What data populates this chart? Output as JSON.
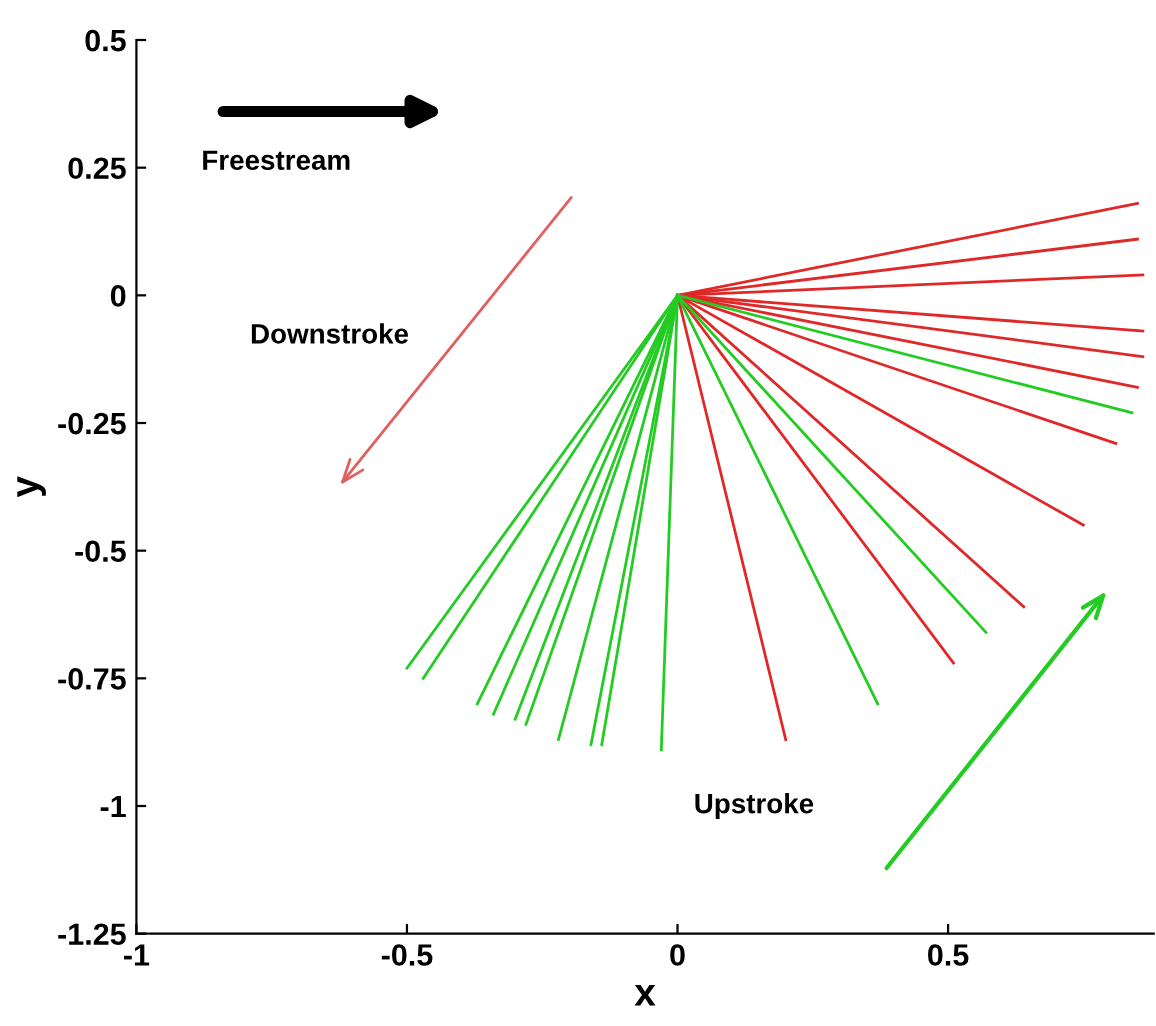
{
  "chart_data": {
    "type": "line",
    "xlabel": "x",
    "ylabel": "y",
    "xlim": [
      -1,
      0.88
    ],
    "ylim": [
      -1.25,
      0.5
    ],
    "xticks": [
      -1,
      -0.5,
      0,
      0.5
    ],
    "yticks": [
      -1.25,
      -1,
      -0.75,
      -0.5,
      -0.25,
      0,
      0.25,
      0.5
    ],
    "grid": false,
    "legend": false,
    "marker": "none",
    "line_style": "solid",
    "annotations": [
      "Freestream",
      "Downstroke",
      "Upstroke"
    ],
    "series": [
      {
        "color": "#e02828",
        "x": [
          0,
          0.2
        ],
        "values": [
          0,
          -0.87
        ]
      },
      {
        "color": "#e02828",
        "x": [
          0,
          0.51
        ],
        "values": [
          0,
          -0.72
        ]
      },
      {
        "color": "#e02828",
        "x": [
          0,
          0.64
        ],
        "values": [
          0,
          -0.61
        ]
      },
      {
        "color": "#e02828",
        "x": [
          0,
          0.75
        ],
        "values": [
          0,
          -0.45
        ]
      },
      {
        "color": "#e02828",
        "x": [
          0,
          0.81
        ],
        "values": [
          0,
          -0.29
        ]
      },
      {
        "color": "#e02828",
        "x": [
          0,
          0.85
        ],
        "values": [
          0,
          -0.18
        ]
      },
      {
        "color": "#e02828",
        "x": [
          0,
          0.86
        ],
        "values": [
          0,
          -0.12
        ]
      },
      {
        "color": "#e02828",
        "x": [
          0,
          0.86
        ],
        "values": [
          0,
          -0.07
        ]
      },
      {
        "color": "#e02828",
        "x": [
          0,
          0.86
        ],
        "values": [
          0,
          0.04
        ]
      },
      {
        "color": "#e02828",
        "x": [
          0,
          0.85
        ],
        "values": [
          0,
          0.11
        ]
      },
      {
        "color": "#e02828",
        "x": [
          0,
          0.85
        ],
        "values": [
          0,
          0.18
        ]
      },
      {
        "color": "#22cc22",
        "x": [
          0,
          -0.5
        ],
        "values": [
          0,
          -0.73
        ]
      },
      {
        "color": "#22cc22",
        "x": [
          0,
          -0.47
        ],
        "values": [
          0,
          -0.75
        ]
      },
      {
        "color": "#22cc22",
        "x": [
          0,
          -0.37
        ],
        "values": [
          0,
          -0.8
        ]
      },
      {
        "color": "#22cc22",
        "x": [
          0,
          -0.34
        ],
        "values": [
          0,
          -0.82
        ]
      },
      {
        "color": "#22cc22",
        "x": [
          0,
          -0.3
        ],
        "values": [
          0,
          -0.83
        ]
      },
      {
        "color": "#22cc22",
        "x": [
          0,
          -0.28
        ],
        "values": [
          0,
          -0.84
        ]
      },
      {
        "color": "#22cc22",
        "x": [
          0,
          -0.22
        ],
        "values": [
          0,
          -0.87
        ]
      },
      {
        "color": "#22cc22",
        "x": [
          0,
          -0.16
        ],
        "values": [
          0,
          -0.88
        ]
      },
      {
        "color": "#22cc22",
        "x": [
          0,
          -0.14
        ],
        "values": [
          0,
          -0.88
        ]
      },
      {
        "color": "#22cc22",
        "x": [
          0,
          -0.03
        ],
        "values": [
          0,
          -0.89
        ]
      },
      {
        "color": "#22cc22",
        "x": [
          0,
          0.37
        ],
        "values": [
          0,
          -0.8
        ]
      },
      {
        "color": "#22cc22",
        "x": [
          0,
          0.57
        ],
        "values": [
          0,
          -0.66
        ]
      },
      {
        "color": "#22cc22",
        "x": [
          0,
          0.84
        ],
        "values": [
          0,
          -0.23
        ]
      }
    ]
  }
}
